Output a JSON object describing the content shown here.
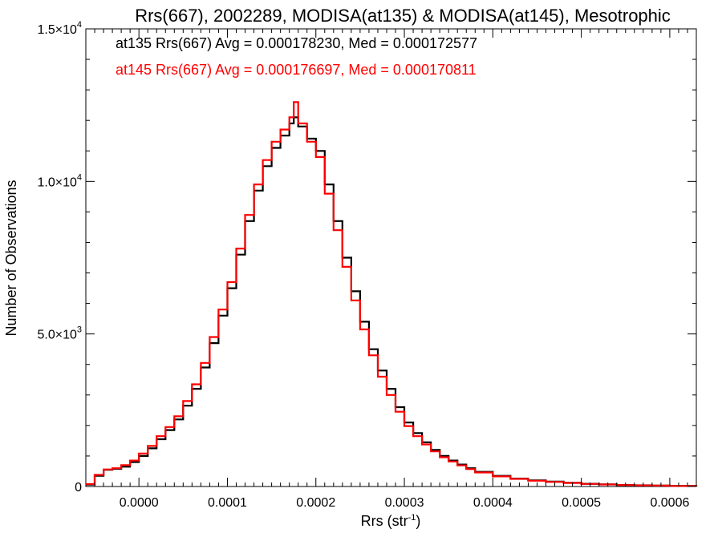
{
  "chart_data": {
    "type": "line",
    "title": "Rrs(667), 2002289, MODISA(at135) & MODISA(at145), Mesotrophic",
    "xlabel_main": "Rrs (str",
    "xlabel_sup": "-1",
    "xlabel_close": ")",
    "ylabel": "Number of Observations",
    "xlim": [
      -6e-05,
      0.00063
    ],
    "ylim": [
      0,
      15000
    ],
    "x_ticks": [
      {
        "value": 0.0,
        "label": "0.0000"
      },
      {
        "value": 0.0001,
        "label": "0.0001"
      },
      {
        "value": 0.0002,
        "label": "0.0002"
      },
      {
        "value": 0.0003,
        "label": "0.0003"
      },
      {
        "value": 0.0004,
        "label": "0.0004"
      },
      {
        "value": 0.0005,
        "label": "0.0005"
      },
      {
        "value": 0.0006,
        "label": "0.0006"
      }
    ],
    "y_ticks": [
      {
        "value": 0,
        "label": "0",
        "mant": "0",
        "exp": ""
      },
      {
        "value": 5000,
        "label": "5.0×10³",
        "mant": "5.0×10",
        "exp": "3"
      },
      {
        "value": 10000,
        "label": "1.0×10⁴",
        "mant": "1.0×10",
        "exp": "4"
      },
      {
        "value": 15000,
        "label": "1.5×10⁴",
        "mant": "1.5×10",
        "exp": "4"
      }
    ],
    "annotations": [
      {
        "text": "at135 Rrs(667) Avg = 0.000178230, Med = 0.000172577",
        "color": "#000000"
      },
      {
        "text": "at145 Rrs(667) Avg = 0.000176697, Med = 0.000170811",
        "color": "#ff0000"
      }
    ],
    "grid": false,
    "series": [
      {
        "color": "#000000",
        "x": [
          -6e-05,
          -5e-05,
          -4e-05,
          -3e-05,
          -2e-05,
          -1e-05,
          0.0,
          1e-05,
          2e-05,
          3e-05,
          4e-05,
          5e-05,
          6e-05,
          7e-05,
          8e-05,
          9e-05,
          0.0001,
          0.00011,
          0.00012,
          0.00013,
          0.00014,
          0.00015,
          0.00016,
          0.00017,
          0.000175,
          0.00018,
          0.00019,
          0.0002,
          0.00021,
          0.00022,
          0.00023,
          0.00024,
          0.00025,
          0.00026,
          0.00027,
          0.00028,
          0.00029,
          0.0003,
          0.00031,
          0.00032,
          0.00033,
          0.00034,
          0.00035,
          0.00036,
          0.00037,
          0.00038,
          0.0004,
          0.00042,
          0.00044,
          0.00046,
          0.00048,
          0.0005,
          0.00052,
          0.00054,
          0.00056,
          0.00058,
          0.0006,
          0.00063
        ],
        "values": [
          60,
          350,
          550,
          580,
          650,
          800,
          1000,
          1250,
          1550,
          1850,
          2200,
          2650,
          3200,
          3900,
          4700,
          5600,
          6500,
          7600,
          8700,
          9700,
          10500,
          11100,
          11500,
          11900,
          12100,
          11800,
          11400,
          11000,
          9900,
          8700,
          7500,
          6400,
          5400,
          4500,
          3800,
          3200,
          2600,
          2100,
          1750,
          1450,
          1200,
          1000,
          850,
          720,
          600,
          480,
          350,
          260,
          200,
          160,
          120,
          90,
          70,
          50,
          40,
          30,
          20,
          10
        ]
      },
      {
        "color": "#ff0000",
        "x": [
          -6e-05,
          -5e-05,
          -4e-05,
          -3e-05,
          -2e-05,
          -1e-05,
          0.0,
          1e-05,
          2e-05,
          3e-05,
          4e-05,
          5e-05,
          6e-05,
          7e-05,
          8e-05,
          9e-05,
          0.0001,
          0.00011,
          0.00012,
          0.00013,
          0.00014,
          0.00015,
          0.00016,
          0.00017,
          0.000175,
          0.00018,
          0.00019,
          0.0002,
          0.00021,
          0.00022,
          0.00023,
          0.00024,
          0.00025,
          0.00026,
          0.00027,
          0.00028,
          0.00029,
          0.0003,
          0.00031,
          0.00032,
          0.00033,
          0.00034,
          0.00035,
          0.00036,
          0.00037,
          0.00038,
          0.0004,
          0.00042,
          0.00044,
          0.00046,
          0.00048,
          0.0005,
          0.00052,
          0.00054,
          0.00056,
          0.00058,
          0.0006,
          0.00063
        ],
        "values": [
          80,
          380,
          560,
          600,
          700,
          850,
          1080,
          1330,
          1650,
          1950,
          2300,
          2800,
          3350,
          4050,
          4900,
          5800,
          6700,
          7800,
          8900,
          9900,
          10700,
          11300,
          11700,
          12100,
          12600,
          11900,
          11300,
          10800,
          9600,
          8400,
          7200,
          6100,
          5150,
          4300,
          3600,
          3000,
          2450,
          1980,
          1650,
          1380,
          1150,
          960,
          820,
          690,
          570,
          460,
          330,
          250,
          190,
          150,
          115,
          85,
          65,
          48,
          38,
          28,
          18,
          8
        ]
      }
    ]
  }
}
